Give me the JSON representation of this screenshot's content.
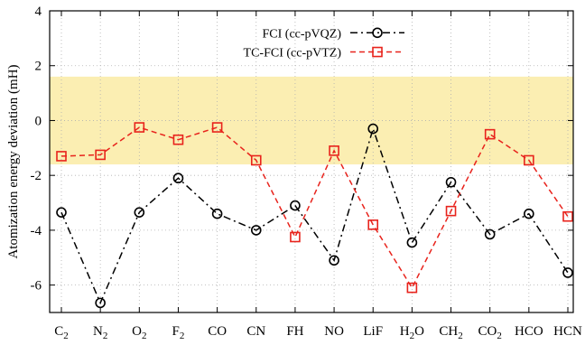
{
  "chart_data": {
    "type": "line",
    "categories": [
      {
        "base": "C",
        "sub": "2"
      },
      {
        "base": "N",
        "sub": "2"
      },
      {
        "base": "O",
        "sub": "2"
      },
      {
        "base": "F",
        "sub": "2"
      },
      {
        "base": "CO",
        "sub": ""
      },
      {
        "base": "CN",
        "sub": ""
      },
      {
        "base": "FH",
        "sub": ""
      },
      {
        "base": "NO",
        "sub": ""
      },
      {
        "base": "LiF",
        "sub": ""
      },
      {
        "base": "H",
        "sub": "2",
        "post": "O"
      },
      {
        "base": "CH",
        "sub": "2"
      },
      {
        "base": "CO",
        "sub": "2"
      },
      {
        "base": "HCO",
        "sub": ""
      },
      {
        "base": "HCN",
        "sub": ""
      }
    ],
    "series": [
      {
        "name": "FCI (cc-pVQZ)",
        "color": "#000000",
        "marker": "circle",
        "line_style": "dash-dot",
        "values": [
          -3.35,
          -6.65,
          -3.35,
          -2.1,
          -3.4,
          -4.0,
          -3.1,
          -5.1,
          -0.3,
          -4.45,
          -2.25,
          -4.15,
          -3.4,
          -5.55
        ]
      },
      {
        "name": "TC-FCI (cc-pVTZ)",
        "color": "#e8231c",
        "marker": "square",
        "line_style": "dashed",
        "values": [
          -1.3,
          -1.25,
          -0.25,
          -0.7,
          -0.25,
          -1.45,
          -4.25,
          -1.1,
          -3.8,
          -6.1,
          -3.3,
          -0.5,
          -1.45,
          -3.5
        ]
      }
    ],
    "ylabel": "Atomization energy deviation (mH)",
    "xlabel": "",
    "ylim": [
      -7,
      4
    ],
    "yticks": [
      -6,
      -4,
      -2,
      0,
      2,
      4
    ],
    "shaded_band": {
      "y_range": [
        -1.6,
        1.6
      ],
      "color": "#fbeeb2"
    },
    "grid": true,
    "legend_position": "top-right"
  }
}
